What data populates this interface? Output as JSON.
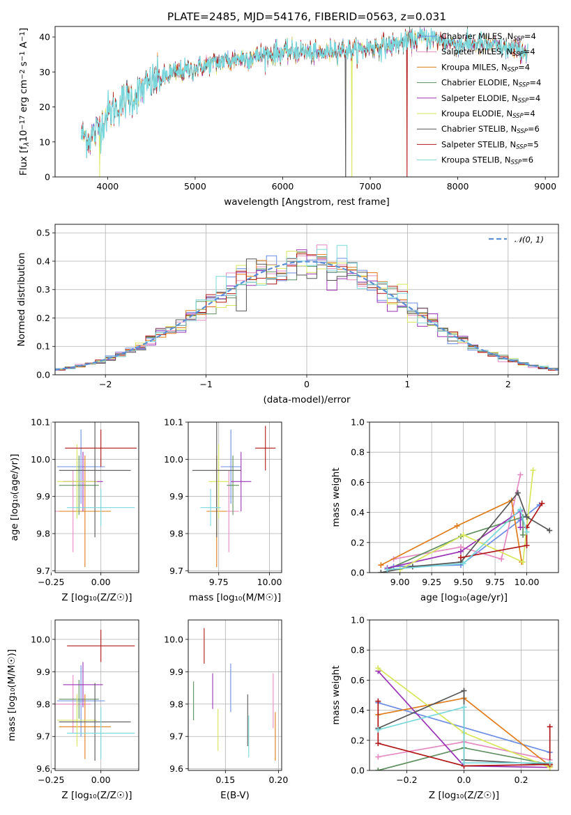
{
  "colors": {
    "Chabrier MILES": "#6b8ce3",
    "Salpeter MILES": "#e58ac2",
    "Kroupa MILES": "#e07b1a",
    "Chabrier ELODIE": "#5e8f5e",
    "Salpeter ELODIE": "#9b32b6",
    "Kroupa ELODIE": "#d7e65a",
    "Chabrier STELIB": "#555555",
    "Salpeter STELIB": "#b01818",
    "Kroupa STELIB": "#78d8dc",
    "normal": "#5b8fd6"
  },
  "chart_data": [
    {
      "id": "spectrum",
      "type": "line",
      "title": "PLATE=2485, MJD=54176, FIBERID=0563, z=0.031",
      "xlabel": "wavelength [Angstrom, rest frame]",
      "ylabel_parts": [
        "Flux [f",
        "λ",
        "10",
        "−17",
        " erg cm",
        "−2",
        " s",
        "−1",
        " A",
        "−1",
        "]"
      ],
      "xlim": [
        3400,
        9150
      ],
      "ylim": [
        0,
        43
      ],
      "xticks": [
        "4000",
        "5000",
        "6000",
        "7000",
        "8000",
        "9000"
      ],
      "xtick_values": [
        4000,
        5000,
        6000,
        7000,
        8000,
        9000
      ],
      "yticks": [
        "0",
        "10",
        "20",
        "30",
        "40"
      ],
      "ytick_values": [
        0,
        10,
        20,
        30,
        40
      ],
      "continuum": {
        "x": [
          3700,
          3800,
          3900,
          4000,
          4100,
          4200,
          4300,
          4400,
          4500,
          4600,
          4700,
          4800,
          4900,
          5000,
          5200,
          5400,
          5600,
          5800,
          6000,
          6200,
          6400,
          6600,
          6800,
          7000,
          7200,
          7400,
          7600,
          7800,
          8000,
          8200,
          8400,
          8600,
          8800
        ],
        "y": [
          12,
          11,
          14,
          18,
          20,
          22,
          23,
          25,
          27,
          28,
          29,
          30,
          30.5,
          31,
          32.5,
          33.5,
          34,
          35,
          35.5,
          36,
          35,
          36.5,
          36,
          37,
          37.5,
          38.5,
          40,
          39,
          38,
          38,
          37.5,
          36.5,
          36
        ]
      },
      "dips": [
        {
          "series": "Kroupa ELODIE",
          "x": 3910
        },
        {
          "series": "Chabrier STELIB",
          "x": 6720
        },
        {
          "series": "Kroupa ELODIE",
          "x": 6790
        },
        {
          "series": "Salpeter STELIB",
          "x": 7420
        }
      ],
      "legend_placement": "upper-right",
      "legend": [
        {
          "series": "Chabrier MILES",
          "label": "Chabrier MILES, N",
          "sub": "SSP",
          "tail": "=4"
        },
        {
          "series": "Salpeter MILES",
          "label": "Salpeter MILES, N",
          "sub": "SSP",
          "tail": "=4"
        },
        {
          "series": "Kroupa MILES",
          "label": "Kroupa MILES, N",
          "sub": "SSP",
          "tail": "=4"
        },
        {
          "series": "Chabrier ELODIE",
          "label": "Chabrier ELODIE, N",
          "sub": "SSP",
          "tail": "=4"
        },
        {
          "series": "Salpeter ELODIE",
          "label": "Salpeter ELODIE, N",
          "sub": "SSP",
          "tail": "=4"
        },
        {
          "series": "Kroupa ELODIE",
          "label": "Kroupa ELODIE, N",
          "sub": "SSP",
          "tail": "=4"
        },
        {
          "series": "Chabrier STELIB",
          "label": "Chabrier STELIB, N",
          "sub": "SSP",
          "tail": "=6"
        },
        {
          "series": "Salpeter STELIB",
          "label": "Salpeter STELIB, N",
          "sub": "SSP",
          "tail": "=5"
        },
        {
          "series": "Kroupa STELIB",
          "label": "Kroupa STELIB, N",
          "sub": "SSP",
          "tail": "=6"
        }
      ]
    },
    {
      "id": "residuals",
      "type": "histogram",
      "xlabel": "(data-model)/error",
      "ylabel": "Normed distribution",
      "xlim": [
        -2.5,
        2.5
      ],
      "ylim": [
        0,
        0.53
      ],
      "grid": true,
      "bin_width": 0.1,
      "xticks": [
        "−2",
        "−1",
        "0",
        "1",
        "2"
      ],
      "xtick_values": [
        -2,
        -1,
        0,
        1,
        2
      ],
      "yticks": [
        "0.0",
        "0.1",
        "0.2",
        "0.3",
        "0.4",
        "0.5"
      ],
      "ytick_values": [
        0,
        0.1,
        0.2,
        0.3,
        0.4,
        0.5
      ],
      "legend_label": "𝒩(0, 1)",
      "legend_placement": "upper-right"
    },
    {
      "id": "age-vs-Z",
      "type": "errorbar",
      "xlabel": "Z [log₁₀(Z/Z☉)]",
      "ylabel": "age  [log₁₀(age/yr)]",
      "xlim": [
        -0.23,
        0.19
      ],
      "ylim": [
        9.695,
        10.1
      ],
      "xticks": [
        "−0.25",
        "0.00"
      ],
      "xtick_values": [
        -0.25,
        0
      ],
      "yticks": [
        "9.7",
        "9.8",
        "9.9",
        "10.0",
        "10.1"
      ],
      "ytick_values": [
        9.7,
        9.8,
        9.9,
        10.0,
        10.1
      ],
      "points": [
        {
          "series": "Chabrier MILES",
          "x": -0.1,
          "xerr": 0.12,
          "y": 9.98,
          "yerr": 0.1
        },
        {
          "series": "Salpeter MILES",
          "x": -0.14,
          "xerr": 0.09,
          "y": 9.86,
          "yerr": 0.11
        },
        {
          "series": "Kroupa MILES",
          "x": -0.08,
          "xerr": 0.13,
          "y": 9.86,
          "yerr": 0.15
        },
        {
          "series": "Chabrier ELODIE",
          "x": -0.11,
          "xerr": 0.1,
          "y": 9.93,
          "yerr": 0.08
        },
        {
          "series": "Salpeter ELODIE",
          "x": -0.09,
          "xerr": 0.1,
          "y": 9.94,
          "yerr": 0.08
        },
        {
          "series": "Kroupa ELODIE",
          "x": -0.12,
          "xerr": 0.1,
          "y": 9.94,
          "yerr": 0.1
        },
        {
          "series": "Chabrier STELIB",
          "x": -0.03,
          "xerr": 0.18,
          "y": 9.97,
          "yerr": 0.18
        },
        {
          "series": "Salpeter STELIB",
          "x": 0.0,
          "xerr": 0.18,
          "y": 10.03,
          "yerr": 0.05
        },
        {
          "series": "Kroupa STELIB",
          "x": 0.0,
          "xerr": 0.17,
          "y": 9.87,
          "yerr": 0.05
        }
      ]
    },
    {
      "id": "age-vs-mass",
      "type": "errorbar",
      "xlabel": "mass [log₁₀(M/M☉)]",
      "ylabel": "",
      "xlim": [
        9.6,
        10.06
      ],
      "ylim": [
        9.695,
        10.1
      ],
      "xticks": [
        "9.75",
        "10.00"
      ],
      "xtick_values": [
        9.75,
        10.0
      ],
      "yticks": [
        "9.7",
        "9.8",
        "9.9",
        "10.0",
        "10.1"
      ],
      "ytick_values": [
        9.7,
        9.8,
        9.9,
        10.0,
        10.1
      ],
      "points": [
        {
          "series": "Chabrier MILES",
          "x": 9.81,
          "xerr": 0.05,
          "y": 9.98,
          "yerr": 0.1
        },
        {
          "series": "Salpeter MILES",
          "x": 9.8,
          "xerr": 0.05,
          "y": 9.86,
          "yerr": 0.11
        },
        {
          "series": "Kroupa MILES",
          "x": 9.74,
          "xerr": 0.05,
          "y": 9.86,
          "yerr": 0.15
        },
        {
          "series": "Chabrier ELODIE",
          "x": 9.82,
          "xerr": 0.03,
          "y": 9.93,
          "yerr": 0.08
        },
        {
          "series": "Salpeter ELODIE",
          "x": 9.86,
          "xerr": 0.05,
          "y": 9.94,
          "yerr": 0.08
        },
        {
          "series": "Kroupa ELODIE",
          "x": 9.75,
          "xerr": 0.05,
          "y": 9.94,
          "yerr": 0.1
        },
        {
          "series": "Chabrier STELIB",
          "x": 9.74,
          "xerr": 0.12,
          "y": 9.97,
          "yerr": 0.18
        },
        {
          "series": "Salpeter STELIB",
          "x": 9.98,
          "xerr": 0.05,
          "y": 10.03,
          "yerr": 0.06
        },
        {
          "series": "Kroupa STELIB",
          "x": 9.71,
          "xerr": 0.05,
          "y": 9.87,
          "yerr": 0.05
        }
      ]
    },
    {
      "id": "weight-vs-age",
      "type": "line",
      "xlabel": "age  [log₁₀(age/yr)]",
      "ylabel": "mass weight",
      "xlim": [
        8.76,
        10.25
      ],
      "ylim": [
        0,
        1
      ],
      "grid": true,
      "xticks": [
        "9.00",
        "9.25",
        "9.50",
        "9.75",
        "10.00"
      ],
      "xtick_values": [
        9.0,
        9.25,
        9.5,
        9.75,
        10.0
      ],
      "yticks": [
        "0.0",
        "0.2",
        "0.4",
        "0.6",
        "0.8",
        "1.0"
      ],
      "ytick_values": [
        0,
        0.2,
        0.4,
        0.6,
        0.8,
        1.0
      ],
      "series": [
        {
          "series": "Chabrier MILES",
          "x": [
            8.95,
            9.48,
            9.95,
            10.1
          ],
          "y": [
            0.04,
            0.05,
            0.35,
            0.45
          ]
        },
        {
          "series": "Salpeter MILES",
          "x": [
            8.95,
            9.48,
            9.8,
            9.95
          ],
          "y": [
            0.09,
            0.17,
            0.09,
            0.65
          ]
        },
        {
          "series": "Kroupa MILES",
          "x": [
            8.85,
            9.45,
            9.88,
            9.96
          ],
          "y": [
            0.05,
            0.31,
            0.48,
            0.07
          ]
        },
        {
          "series": "Chabrier ELODIE",
          "x": [
            8.9,
            9.48,
            9.97,
            9.97
          ],
          "y": [
            0.02,
            0.24,
            0.37,
            0.25
          ]
        },
        {
          "series": "Salpeter ELODIE",
          "x": [
            8.9,
            9.48,
            9.95,
            9.95
          ],
          "y": [
            0.03,
            0.14,
            0.41,
            0.3
          ]
        },
        {
          "series": "Kroupa ELODIE",
          "x": [
            9.0,
            9.5,
            9.97,
            10.05
          ],
          "y": [
            0.02,
            0.25,
            0.07,
            0.68
          ]
        },
        {
          "series": "Chabrier STELIB",
          "x": [
            8.85,
            9.1,
            9.48,
            9.93,
            10.0,
            10.18
          ],
          "y": [
            0.0,
            0.04,
            0.07,
            0.53,
            0.37,
            0.28
          ]
        },
        {
          "series": "Salpeter STELIB",
          "x": [
            9.48,
            10.0,
            10.0,
            10.12
          ],
          "y": [
            0.1,
            0.18,
            0.3,
            0.46
          ]
        },
        {
          "series": "Kroupa STELIB",
          "x": [
            8.9,
            9.5,
            9.95,
            10.0
          ],
          "y": [
            0.02,
            0.06,
            0.42,
            0.27
          ]
        }
      ]
    },
    {
      "id": "mass-vs-Z",
      "type": "errorbar",
      "xlabel": "Z [log₁₀(Z/Z☉)]",
      "ylabel": "mass [log₁₀(M/M☉)]",
      "xlim": [
        -0.23,
        0.19
      ],
      "ylim": [
        9.595,
        10.06
      ],
      "xticks": [
        "−0.25",
        "0.00"
      ],
      "xtick_values": [
        -0.25,
        0
      ],
      "yticks": [
        "9.6",
        "9.7",
        "9.8",
        "9.9",
        "10.0"
      ],
      "ytick_values": [
        9.6,
        9.7,
        9.8,
        9.9,
        10.0
      ],
      "points": [
        {
          "series": "Chabrier MILES",
          "x": -0.1,
          "xerr": 0.12,
          "y": 9.81,
          "yerr": 0.11
        },
        {
          "series": "Salpeter MILES",
          "x": -0.14,
          "xerr": 0.09,
          "y": 9.8,
          "yerr": 0.09
        },
        {
          "series": "Kroupa MILES",
          "x": -0.08,
          "xerr": 0.13,
          "y": 9.73,
          "yerr": 0.1
        },
        {
          "series": "Chabrier ELODIE",
          "x": -0.11,
          "xerr": 0.1,
          "y": 9.815,
          "yerr": 0.06
        },
        {
          "series": "Salpeter ELODIE",
          "x": -0.09,
          "xerr": 0.1,
          "y": 9.86,
          "yerr": 0.07
        },
        {
          "series": "Kroupa ELODIE",
          "x": -0.12,
          "xerr": 0.1,
          "y": 9.75,
          "yerr": 0.08
        },
        {
          "series": "Chabrier STELIB",
          "x": -0.03,
          "xerr": 0.18,
          "y": 9.745,
          "yerr": 0.12
        },
        {
          "series": "Salpeter STELIB",
          "x": 0.0,
          "xerr": 0.17,
          "y": 9.98,
          "yerr": 0.05
        },
        {
          "series": "Kroupa STELIB",
          "x": 0.0,
          "xerr": 0.17,
          "y": 9.71,
          "yerr": 0.08
        }
      ]
    },
    {
      "id": "mass-vs-EBV",
      "type": "errorbar",
      "xlabel": "E(B-V)",
      "ylabel": "",
      "xlim": [
        0.115,
        0.203
      ],
      "ylim": [
        9.595,
        10.06
      ],
      "xticks": [
        "0.15",
        "0.20"
      ],
      "xtick_values": [
        0.15,
        0.2
      ],
      "yticks": [
        "9.6",
        "9.7",
        "9.8",
        "9.9",
        "10.0"
      ],
      "ytick_values": [
        9.6,
        9.7,
        9.8,
        9.9,
        10.0
      ],
      "points": [
        {
          "series": "Chabrier MILES",
          "x": 0.155,
          "y": 9.85,
          "yerr": 0.075
        },
        {
          "series": "Salpeter MILES",
          "x": 0.195,
          "y": 9.81,
          "yerr": 0.085
        },
        {
          "series": "Kroupa MILES",
          "x": 0.197,
          "y": 9.7,
          "yerr": 0.075
        },
        {
          "series": "Chabrier ELODIE",
          "x": 0.12,
          "y": 9.81,
          "yerr": 0.06
        },
        {
          "series": "Salpeter ELODIE",
          "x": 0.138,
          "y": 9.84,
          "yerr": 0.055
        },
        {
          "series": "Kroupa ELODIE",
          "x": 0.143,
          "y": 9.72,
          "yerr": 0.065
        },
        {
          "series": "Chabrier STELIB",
          "x": 0.171,
          "y": 9.75,
          "yerr": 0.08
        },
        {
          "series": "Salpeter STELIB",
          "x": 0.13,
          "y": 9.98,
          "yerr": 0.055
        },
        {
          "series": "Kroupa STELIB",
          "x": 0.172,
          "y": 9.7,
          "yerr": 0.065
        }
      ]
    },
    {
      "id": "weight-vs-Z",
      "type": "line",
      "xlabel": "Z [log₁₀(Z/Z☉)]",
      "ylabel": "mass weight",
      "xlim": [
        -0.33,
        0.33
      ],
      "ylim": [
        0,
        1
      ],
      "grid": true,
      "xticks": [
        "−0.2",
        "0.0",
        "0.2"
      ],
      "xtick_values": [
        -0.2,
        0.0,
        0.2
      ],
      "yticks": [
        "0.0",
        "0.2",
        "0.4",
        "0.6",
        "0.8",
        "1.0"
      ],
      "ytick_values": [
        0,
        0.2,
        0.4,
        0.6,
        0.8,
        1.0
      ],
      "series": [
        {
          "series": "Chabrier MILES",
          "x": [
            -0.3,
            0.3
          ],
          "y": [
            0.45,
            0.12
          ]
        },
        {
          "series": "Salpeter MILES",
          "x": [
            -0.3,
            0.0,
            0.3
          ],
          "y": [
            0.09,
            0.19,
            0.07
          ]
        },
        {
          "series": "Kroupa MILES",
          "x": [
            -0.3,
            0.0,
            0.3
          ],
          "y": [
            0.37,
            0.48,
            0.03
          ]
        },
        {
          "series": "Chabrier ELODIE",
          "x": [
            -0.3,
            0.0,
            0.3
          ],
          "y": [
            0.0,
            0.15,
            0.04
          ]
        },
        {
          "series": "Salpeter ELODIE",
          "x": [
            -0.3,
            0.0,
            0.3
          ],
          "y": [
            0.66,
            0.03,
            0.02
          ]
        },
        {
          "series": "Kroupa ELODIE",
          "x": [
            -0.3,
            0.0,
            0.3
          ],
          "y": [
            0.68,
            0.25,
            0.02
          ]
        },
        {
          "series": "Chabrier STELIB",
          "x": [
            -0.3,
            0.0,
            0.0,
            0.3
          ],
          "y": [
            0.28,
            0.53,
            0.07,
            0.04
          ]
        },
        {
          "series": "Salpeter STELIB",
          "x": [
            -0.3,
            -0.3,
            0.0,
            0.3,
            0.3
          ],
          "y": [
            0.46,
            0.18,
            0.03,
            0.04,
            0.29
          ]
        },
        {
          "series": "Kroupa STELIB",
          "x": [
            -0.3,
            0.0,
            0.0,
            0.3
          ],
          "y": [
            0.27,
            0.42,
            0.05,
            0.05
          ]
        }
      ]
    }
  ]
}
